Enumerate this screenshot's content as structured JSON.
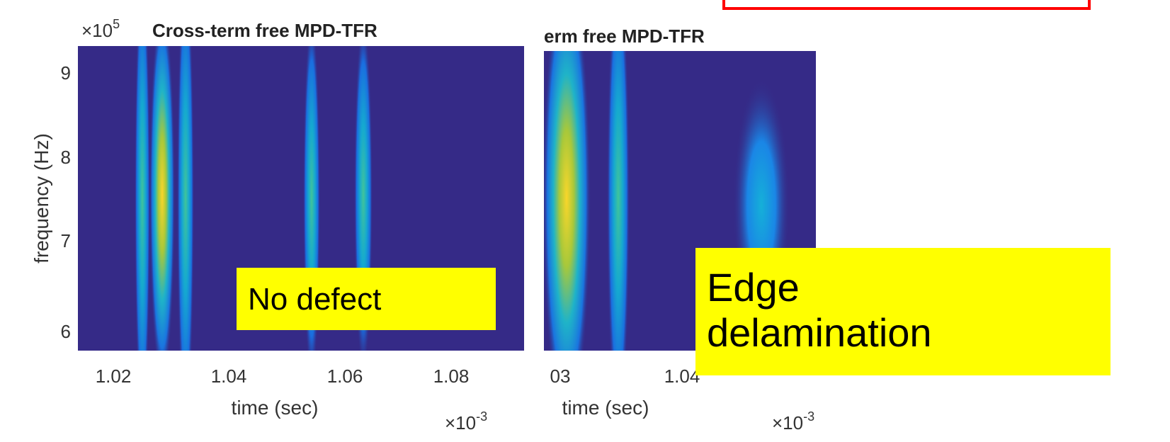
{
  "panels": [
    {
      "title": "Cross-term free MPD-TFR",
      "y_exponent": "×10",
      "y_exponent_power": "5",
      "y_label": "frequency (Hz)",
      "y_ticks": [
        "9",
        "8",
        "7",
        "6"
      ],
      "x_ticks": [
        "1.02",
        "1.04",
        "1.06",
        "1.08"
      ],
      "x_label": "time (sec)",
      "x_exponent": "×10",
      "x_exponent_power": "-3",
      "annotation": "No defect"
    },
    {
      "title": "erm free MPD-TFR",
      "x_ticks": [
        "03",
        "1.04"
      ],
      "x_label": "time (sec)",
      "x_exponent": "×10",
      "x_exponent_power": "-3",
      "annotation": "Edge delamination"
    }
  ]
}
